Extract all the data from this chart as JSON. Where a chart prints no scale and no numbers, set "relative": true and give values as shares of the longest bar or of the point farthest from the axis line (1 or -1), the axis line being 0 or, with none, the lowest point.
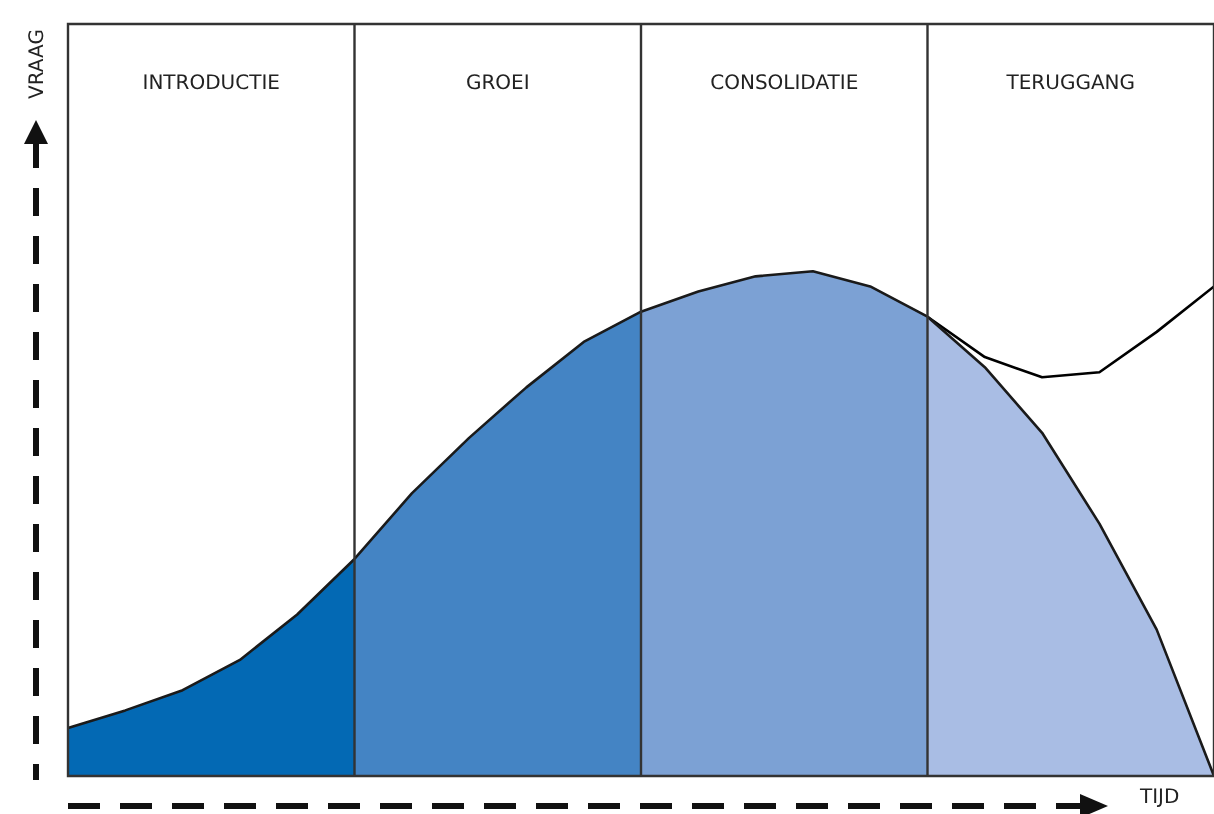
{
  "chart_data": {
    "type": "area",
    "relative": true,
    "legend": false,
    "grid": "x",
    "xlabel": "TIJD",
    "annotations": [
      "INTRODUCTIE",
      "GROEI",
      "CONSOLIDATIE",
      "TERUGGANG",
      "VRAAG"
    ],
    "categories": [
      null,
      null,
      null,
      null,
      null,
      null,
      null,
      null,
      null,
      null,
      null,
      null,
      null,
      null,
      null,
      null,
      null,
      null,
      null,
      null,
      null
    ],
    "series": [
      {
        "color": "#0369b4",
        "values": [
          0.095,
          0.13,
          0.17,
          0.23,
          0.32,
          0.43,
          null,
          null,
          null,
          null,
          null,
          null,
          null,
          null,
          null,
          null,
          null,
          null,
          null,
          null,
          null
        ]
      },
      {
        "color": "#4484c4",
        "values": [
          null,
          null,
          null,
          null,
          null,
          0.43,
          0.56,
          0.67,
          0.77,
          0.86,
          0.92,
          null,
          null,
          null,
          null,
          null,
          null,
          null,
          null,
          null,
          null
        ]
      },
      {
        "color": "#7ca1d4",
        "values": [
          null,
          null,
          null,
          null,
          null,
          null,
          null,
          null,
          null,
          null,
          0.92,
          0.96,
          0.99,
          1,
          0.97,
          0.91,
          null,
          null,
          null,
          null,
          null
        ]
      },
      {
        "color": "#a9bde4",
        "values": [
          null,
          null,
          null,
          null,
          null,
          null,
          null,
          null,
          null,
          null,
          null,
          null,
          null,
          null,
          null,
          0.91,
          0.81,
          0.68,
          0.5,
          0.29,
          0
        ]
      },
      {
        "type": "line",
        "color": "#000000",
        "values": [
          null,
          null,
          null,
          null,
          null,
          null,
          null,
          null,
          null,
          null,
          null,
          null,
          null,
          null,
          null,
          0.91,
          0.83,
          0.79,
          0.8,
          0.88,
          0.97
        ]
      }
    ]
  }
}
